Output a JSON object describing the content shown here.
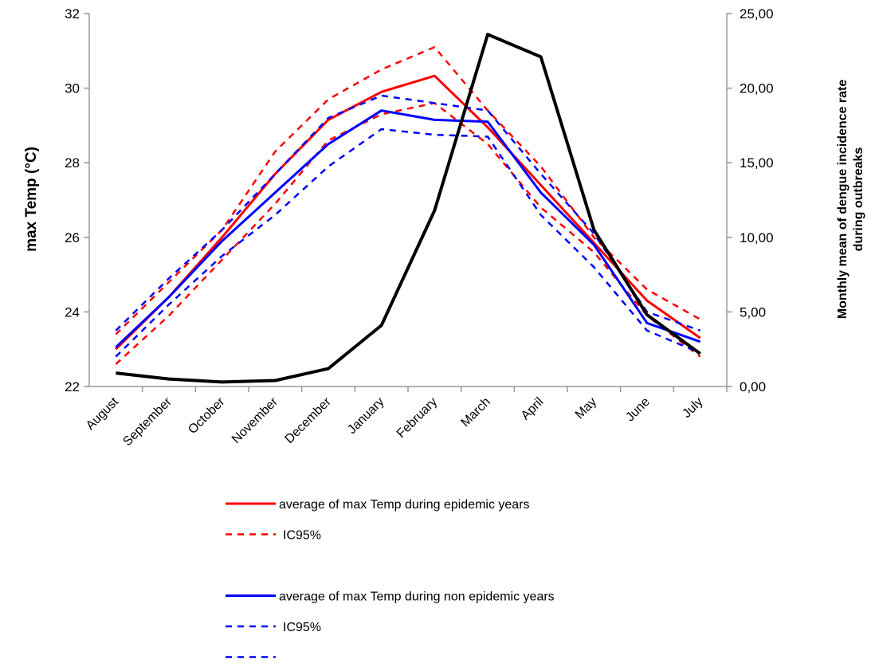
{
  "chart_data": {
    "type": "line",
    "ylabel": "max Temp (°C)",
    "y2label": [
      "Monthly mean of dengue incidence rate",
      "during outbreaks"
    ],
    "categories": [
      "August",
      "September",
      "October",
      "November",
      "December",
      "January",
      "February",
      "March",
      "April",
      "May",
      "June",
      "July"
    ],
    "ylim": [
      22,
      32
    ],
    "yticks": [
      22,
      24,
      26,
      28,
      30,
      32
    ],
    "y2lim": [
      0,
      25
    ],
    "y2ticks": [
      {
        "value": 0,
        "label": "0,00"
      },
      {
        "value": 5,
        "label": "5,00"
      },
      {
        "value": 10,
        "label": "10,00"
      },
      {
        "value": 15,
        "label": "15,00"
      },
      {
        "value": 20,
        "label": "20,00"
      },
      {
        "value": 25,
        "label": "25,00"
      }
    ],
    "series": [
      {
        "name": "average of max Temp during epidemic years",
        "color": "#ff0000",
        "dashed": false,
        "in_legend": true,
        "values": [
          23.0,
          24.4,
          26.0,
          27.7,
          29.15,
          29.9,
          30.33,
          28.95,
          27.4,
          25.85,
          24.3,
          23.3
        ]
      },
      {
        "name": "IC95%",
        "color": "#ff0000",
        "dashed": true,
        "in_legend": true,
        "values": [
          23.4,
          24.8,
          26.2,
          28.3,
          29.7,
          30.5,
          31.1,
          29.4,
          27.9,
          26.0,
          24.6,
          23.8
        ]
      },
      {
        "name": null,
        "color": "#ff0000",
        "dashed": true,
        "in_legend": false,
        "values": [
          22.6,
          23.9,
          25.4,
          26.9,
          28.6,
          29.3,
          29.6,
          28.5,
          26.8,
          25.6,
          23.9,
          22.8
        ]
      },
      {
        "name": "average of max Temp during non epidemic years",
        "color": "#0000ff",
        "dashed": false,
        "in_legend": true,
        "values": [
          23.05,
          24.4,
          25.9,
          27.2,
          28.5,
          29.4,
          29.15,
          29.1,
          27.2,
          25.8,
          23.7,
          23.2
        ]
      },
      {
        "name": "IC95%",
        "color": "#0000ff",
        "dashed": true,
        "in_legend": true,
        "values": [
          23.5,
          24.9,
          26.2,
          27.7,
          29.2,
          29.8,
          29.6,
          29.4,
          27.7,
          26.1,
          24.0,
          23.5
        ]
      },
      {
        "name": null,
        "color": "#0000ff",
        "dashed": true,
        "in_legend": true,
        "values": [
          22.8,
          24.2,
          25.5,
          26.6,
          27.9,
          28.9,
          28.75,
          28.7,
          26.6,
          25.2,
          23.5,
          22.9
        ]
      },
      {
        "name": null,
        "color": "#000000",
        "dashed": false,
        "in_legend": false,
        "axis": "y2",
        "values": [
          0.9,
          0.5,
          0.3,
          0.4,
          1.2,
          4.1,
          11.8,
          23.6,
          22.1,
          10.5,
          4.8,
          2.2
        ]
      }
    ]
  }
}
